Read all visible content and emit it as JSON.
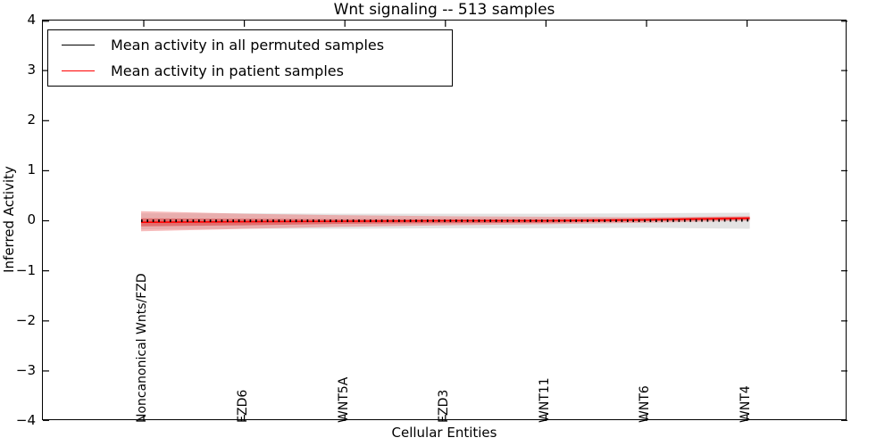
{
  "title": "Wnt signaling -- 513 samples",
  "legend": {
    "entries": [
      {
        "label": "Mean activity in all permuted samples",
        "color": "#000000"
      },
      {
        "label": "Mean activity in patient samples",
        "color": "#ff0000"
      }
    ]
  },
  "axes": {
    "ylabel": "Inferred Activity",
    "xlabel": "Cellular Entities",
    "yticks": [
      "4",
      "3",
      "2",
      "1",
      "0",
      "−1",
      "−2",
      "−3",
      "−4"
    ]
  },
  "chart_data": {
    "type": "line",
    "title": "Wnt signaling -- 513 samples",
    "xlabel": "Cellular Entities",
    "ylabel": "Inferred Activity",
    "ylim": [
      -4,
      4
    ],
    "grid": false,
    "legend_position": "upper left",
    "categories": [
      "Noncanonical Wnts/FZD",
      "FZD6",
      "WNT5A",
      "FZD3",
      "WNT11",
      "WNT6",
      "WNT4"
    ],
    "series": [
      {
        "name": "Mean activity in all permuted samples",
        "color": "#000000",
        "style": "dashed",
        "values": [
          0.0,
          0.0,
          0.0,
          0.0,
          0.0,
          0.0,
          0.01
        ]
      },
      {
        "name": "Mean activity in patient samples",
        "color": "#ff0000",
        "style": "solid",
        "values": [
          -0.03,
          -0.02,
          -0.01,
          0.0,
          0.0,
          0.02,
          0.05
        ]
      }
    ],
    "bands": [
      {
        "name": "permuted-samples-band",
        "color": "#b8b8b8",
        "opacity": 0.4,
        "upper": [
          0.15,
          0.15,
          0.14,
          0.14,
          0.14,
          0.15,
          0.16
        ],
        "lower": [
          -0.17,
          -0.16,
          -0.16,
          -0.15,
          -0.15,
          -0.14,
          -0.16
        ]
      },
      {
        "name": "patient-samples-outer-band",
        "color": "#ee7777",
        "opacity": 0.5,
        "upper": [
          0.19,
          0.14,
          0.11,
          0.09,
          0.08,
          0.07,
          0.09
        ],
        "lower": [
          -0.21,
          -0.16,
          -0.12,
          -0.09,
          -0.07,
          -0.04,
          0.0
        ]
      },
      {
        "name": "patient-samples-inner-band",
        "color": "#dd4444",
        "opacity": 0.6,
        "upper": [
          0.05,
          0.04,
          0.03,
          0.03,
          0.03,
          0.05,
          0.08
        ],
        "lower": [
          -0.11,
          -0.09,
          -0.06,
          -0.05,
          -0.04,
          -0.01,
          0.02
        ]
      }
    ]
  }
}
